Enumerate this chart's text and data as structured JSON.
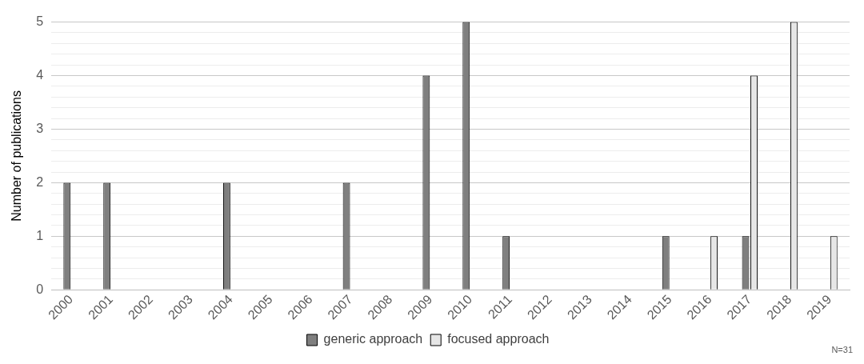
{
  "chart_data": {
    "type": "bar",
    "ylabel": "Number of publications",
    "categories": [
      "2000",
      "2001",
      "2002",
      "2003",
      "2004",
      "2005",
      "2006",
      "2007",
      "2008",
      "2009",
      "2010",
      "2011",
      "2012",
      "2013",
      "2014",
      "2015",
      "2016",
      "2017",
      "2018",
      "2019"
    ],
    "series": [
      {
        "name": "generic approach",
        "color": "#7f7f7f",
        "values": [
          2,
          2,
          null,
          null,
          2,
          null,
          null,
          2,
          null,
          4,
          5,
          1,
          null,
          null,
          null,
          1,
          null,
          1,
          null,
          null
        ]
      },
      {
        "name": "focused approach",
        "color": "#e6e6e6",
        "values": [
          null,
          null,
          null,
          null,
          null,
          null,
          null,
          null,
          null,
          null,
          null,
          null,
          null,
          null,
          null,
          null,
          1,
          4,
          5,
          1
        ]
      }
    ],
    "ylim": [
      0,
      5
    ],
    "yticks": [
      0,
      {
        "value": 0.2,
        "label": null
      },
      {
        "value": 0.4,
        "label": null
      },
      {
        "value": 0.6,
        "label": null
      },
      {
        "value": 0.8,
        "label": null
      },
      1,
      {
        "value": 1.2,
        "label": null
      },
      {
        "value": 1.4,
        "label": null
      },
      {
        "value": 1.6,
        "label": null
      },
      {
        "value": 1.8,
        "label": null
      },
      2,
      {
        "value": 2.2,
        "label": null
      },
      {
        "value": 2.4,
        "label": null
      },
      {
        "value": 2.6,
        "label": null
      },
      {
        "value": 2.8,
        "label": null
      },
      3,
      {
        "value": 3.2,
        "label": null
      },
      {
        "value": 3.4,
        "label": null
      },
      {
        "value": 3.6,
        "label": null
      },
      {
        "value": 3.8,
        "label": null
      },
      4,
      {
        "value": 4.2,
        "label": null
      },
      {
        "value": 4.4,
        "label": null
      },
      {
        "value": 4.6,
        "label": null
      },
      {
        "value": 4.8,
        "label": null
      },
      5
    ],
    "grid": "y",
    "legend": "bottom",
    "annotations": [
      "N=31"
    ]
  }
}
